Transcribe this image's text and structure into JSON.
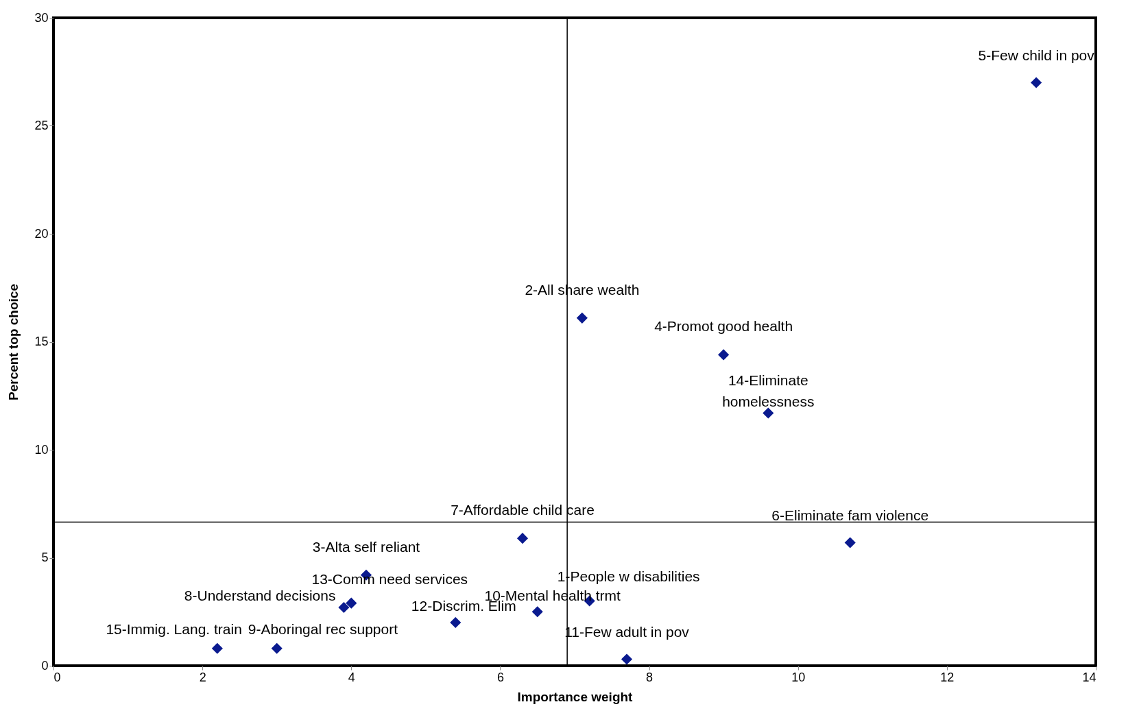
{
  "chart_data": {
    "type": "scatter",
    "xlabel": "Importance weight",
    "ylabel": "Percent top choice",
    "x": [
      7.2,
      7.1,
      4.2,
      9.0,
      13.2,
      10.7,
      6.3,
      3.9,
      3.0,
      6.5,
      7.7,
      5.4,
      4.0,
      9.6,
      2.2
    ],
    "series": [
      {
        "color": "#0a1a8f",
        "values": [
          3.0,
          16.1,
          4.2,
          14.4,
          27.0,
          5.7,
          5.9,
          2.7,
          0.8,
          2.5,
          0.3,
          2.0,
          2.9,
          11.7,
          0.8
        ]
      }
    ],
    "annotations": [
      {
        "text": "1-People w disabilities",
        "x": 7.2,
        "y": 3.0
      },
      {
        "text": "2-All share wealth",
        "x": 7.1,
        "y": 16.1
      },
      {
        "text": "3-Alta self reliant",
        "x": 4.2,
        "y": 4.2
      },
      {
        "text": "4-Promot good health",
        "x": 9.0,
        "y": 14.4
      },
      {
        "text": "5-Few child in pov",
        "x": 13.2,
        "y": 27.0
      },
      {
        "text": "6-Eliminate fam violence",
        "x": 10.7,
        "y": 5.7
      },
      {
        "text": "7-Affordable child care",
        "x": 6.3,
        "y": 5.9
      },
      {
        "text": "8-Understand decisions",
        "x": 3.9,
        "y": 2.7
      },
      {
        "text": "9-Aboringal rec support",
        "x": 3.0,
        "y": 0.8
      },
      {
        "text": "10-Mental health trmt",
        "x": 6.5,
        "y": 2.5
      },
      {
        "text": "11-Few adult in pov",
        "x": 7.7,
        "y": 0.3
      },
      {
        "text": "12-Discrim. Elim",
        "x": 5.4,
        "y": 2.0
      },
      {
        "text": "13-Comm need services",
        "x": 4.0,
        "y": 2.9
      },
      {
        "text": "14-Eliminate homelessness",
        "x": 9.6,
        "y": 11.7
      },
      {
        "text": "15-Immig. Lang. train",
        "x": 2.2,
        "y": 0.8
      }
    ],
    "ref_lines": [
      {
        "axis": "x",
        "value": 6.9,
        "color": "#000000"
      },
      {
        "axis": "y",
        "value": 6.65,
        "color": "#000000"
      }
    ],
    "xlim": [
      0,
      14
    ],
    "xticks": [
      0,
      2,
      4,
      6,
      8,
      10,
      12,
      14
    ],
    "ylim": [
      0,
      30
    ],
    "yticks": [
      0,
      5,
      10,
      15,
      20,
      25,
      30
    ],
    "grid": false,
    "marker": "diamond"
  }
}
